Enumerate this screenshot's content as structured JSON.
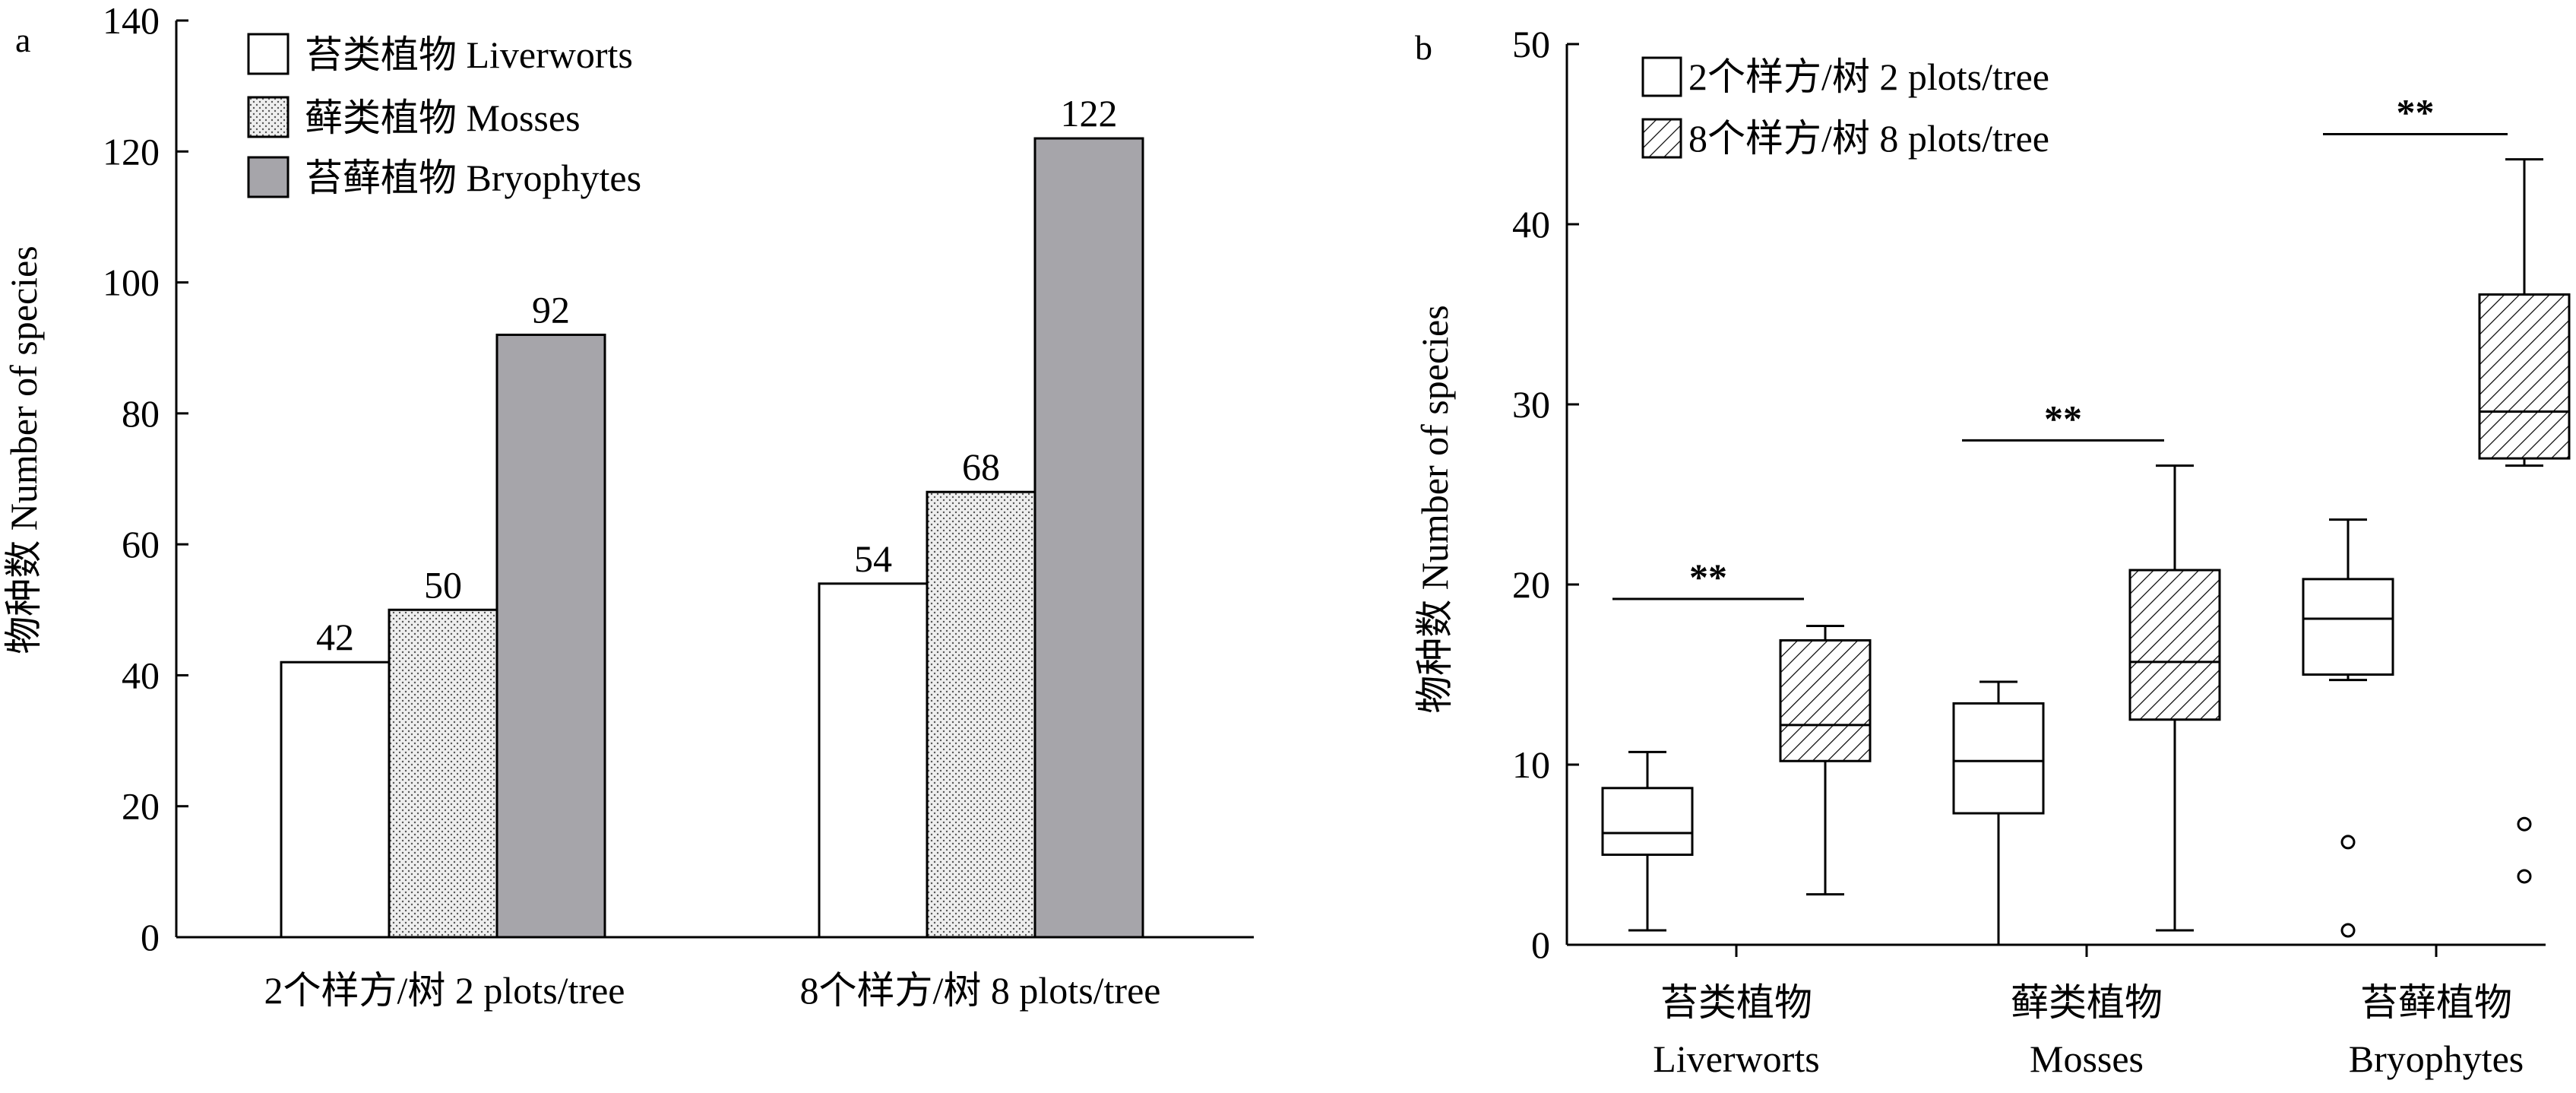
{
  "chart_data": [
    {
      "panel_label": "a",
      "type": "bar",
      "categories": [
        "2个样方/树 2 plots/tree",
        "8个样方/树 8 plots/tree"
      ],
      "series": [
        {
          "name": "苔类植物 Liverworts",
          "values": [
            42,
            54
          ],
          "fill": "#ffffff",
          "pattern": "none"
        },
        {
          "name": "藓类植物 Mosses",
          "values": [
            50,
            68
          ],
          "fill": "#ececec",
          "pattern": "dots"
        },
        {
          "name": "苔藓植物 Bryophytes",
          "values": [
            92,
            122
          ],
          "fill": "#a6a5aa",
          "pattern": "none"
        }
      ],
      "ylabel": "物种数 Number of species",
      "xlabel": "",
      "ylim": [
        0,
        140
      ],
      "yticks": [
        "0",
        "20",
        "40",
        "60",
        "80",
        "100",
        "120",
        "140"
      ],
      "data_labels": [
        "42",
        "50",
        "92",
        "54",
        "68",
        "122"
      ],
      "legend_position": "top-left",
      "grid": false
    },
    {
      "panel_label": "b",
      "type": "box",
      "categories": [
        {
          "zh": "苔类植物",
          "en": "Liverworts"
        },
        {
          "zh": "藓类植物",
          "en": "Mosses"
        },
        {
          "zh": "苔藓植物",
          "en": "Bryophytes"
        }
      ],
      "series": [
        {
          "name": "2个样方/树 2 plots/tree",
          "pattern": "none",
          "boxes": [
            {
              "min": 0.8,
              "q1": 5.0,
              "median": 6.2,
              "q3": 8.7,
              "max": 10.7,
              "outliers": []
            },
            {
              "min": 0.0,
              "q1": 7.3,
              "median": 10.2,
              "q3": 13.4,
              "max": 14.6,
              "outliers": []
            },
            {
              "min": 14.7,
              "q1": 15.0,
              "median": 18.1,
              "q3": 20.3,
              "max": 23.6,
              "outliers": [
                5.7,
                0.8
              ]
            }
          ]
        },
        {
          "name": "8个样方/树 8 plots/tree",
          "pattern": "hatch",
          "boxes": [
            {
              "min": 2.8,
              "q1": 10.2,
              "median": 12.2,
              "q3": 16.9,
              "max": 17.7,
              "outliers": []
            },
            {
              "min": 0.8,
              "q1": 12.5,
              "median": 15.7,
              "q3": 20.8,
              "max": 26.6,
              "outliers": []
            },
            {
              "min": 26.6,
              "q1": 27.0,
              "median": 29.6,
              "q3": 36.1,
              "max": 43.6,
              "outliers": [
                6.7,
                3.8
              ]
            }
          ]
        }
      ],
      "significance": [
        {
          "label": "**",
          "y": 19.2
        },
        {
          "label": "**",
          "y": 28.0
        },
        {
          "label": "**",
          "y": 45.0
        }
      ],
      "ylabel": "物种数 Number of species",
      "xlabel": "",
      "ylim": [
        0,
        50
      ],
      "yticks": [
        "0",
        "10",
        "20",
        "30",
        "40",
        "50"
      ],
      "legend_position": "top-left",
      "grid": false
    }
  ]
}
